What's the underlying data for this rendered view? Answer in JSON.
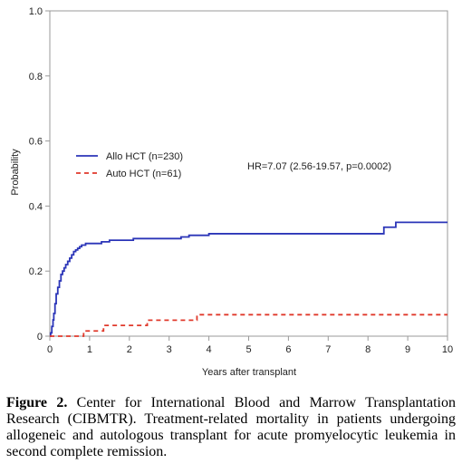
{
  "chart_data": {
    "type": "line",
    "title": "",
    "xlabel": "Years after transplant",
    "ylabel": "Probability",
    "xlim": [
      0,
      10
    ],
    "ylim": [
      0,
      1
    ],
    "xticks": [
      "0",
      "1",
      "2",
      "3",
      "4",
      "5",
      "6",
      "7",
      "8",
      "9",
      "10"
    ],
    "yticks": [
      "0",
      "0.2",
      "0.4",
      "0.6",
      "0.8",
      "1.0"
    ],
    "grid": false,
    "legend_position": "center-left",
    "annotation": "HR=7.07 (2.56-19.57, p=0.0002)",
    "series": [
      {
        "name": "Allo HCT (n=230)",
        "color": "#2b35b8",
        "style": "solid",
        "step": true,
        "x": [
          0,
          0.02,
          0.05,
          0.08,
          0.1,
          0.13,
          0.16,
          0.2,
          0.24,
          0.28,
          0.32,
          0.36,
          0.4,
          0.45,
          0.5,
          0.55,
          0.6,
          0.65,
          0.7,
          0.75,
          0.8,
          0.9,
          1.0,
          1.3,
          1.5,
          2.0,
          2.1,
          3.0,
          3.3,
          3.5,
          3.7,
          4.0,
          8.0,
          8.4,
          8.7,
          10.0
        ],
        "y": [
          0,
          0.01,
          0.03,
          0.05,
          0.07,
          0.1,
          0.13,
          0.15,
          0.17,
          0.19,
          0.2,
          0.21,
          0.22,
          0.23,
          0.24,
          0.25,
          0.26,
          0.265,
          0.27,
          0.275,
          0.28,
          0.285,
          0.285,
          0.29,
          0.295,
          0.295,
          0.3,
          0.3,
          0.305,
          0.31,
          0.31,
          0.315,
          0.315,
          0.335,
          0.35,
          0.35
        ]
      },
      {
        "name": "Auto HCT (n=61)",
        "color": "#e0392b",
        "style": "dashed",
        "step": true,
        "x": [
          0,
          0.85,
          1.35,
          2.45,
          3.7,
          10.0
        ],
        "y": [
          0,
          0.016,
          0.033,
          0.049,
          0.066,
          0.066
        ]
      }
    ]
  },
  "caption": {
    "label": "Figure 2.",
    "text": " Center for International Blood and Marrow Transplantation Research (CIBMTR). Treatment-related mortality in patients undergoing allogeneic and autologous transplant for acute promyelocytic leukemia in second complete remission."
  }
}
